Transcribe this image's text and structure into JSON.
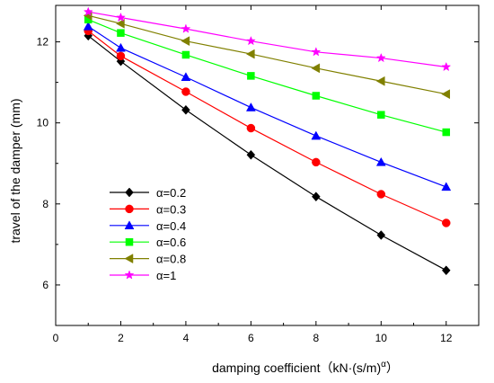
{
  "chart_data": {
    "type": "line",
    "xlabel": "damping coefficient（kN·(s/m)",
    "xlabel_exponent": "α",
    "xlabel_close": "）",
    "ylabel": "travel of the damper (mm)",
    "xlim": [
      0,
      13
    ],
    "ylim": [
      5,
      12.9
    ],
    "xticks": [
      0,
      2,
      4,
      6,
      8,
      10,
      12
    ],
    "yticks": [
      6,
      8,
      10,
      12
    ],
    "x": [
      1,
      2,
      4,
      6,
      8,
      10,
      12
    ],
    "legend_position": "lower-left",
    "series": [
      {
        "name": "α=0.2",
        "color": "#000000",
        "marker": "diamond",
        "values": [
          12.15,
          11.52,
          10.32,
          9.21,
          8.18,
          7.23,
          6.36
        ]
      },
      {
        "name": "α=0.3",
        "color": "#ff0000",
        "marker": "circle",
        "values": [
          12.27,
          11.65,
          10.77,
          9.87,
          9.03,
          8.24,
          7.53
        ]
      },
      {
        "name": "α=0.4",
        "color": "#0000ff",
        "marker": "triangle-up",
        "values": [
          12.38,
          11.85,
          11.13,
          10.38,
          9.68,
          9.03,
          8.42
        ]
      },
      {
        "name": "α=0.6",
        "color": "#00ff00",
        "marker": "square",
        "values": [
          12.55,
          12.22,
          11.68,
          11.16,
          10.67,
          10.2,
          9.77
        ]
      },
      {
        "name": "α=0.8",
        "color": "#808000",
        "marker": "triangle-left",
        "values": [
          12.65,
          12.45,
          12.02,
          11.7,
          11.35,
          11.03,
          10.71
        ]
      },
      {
        "name": "α=1",
        "color": "#ff00ff",
        "marker": "star",
        "values": [
          12.74,
          12.6,
          12.32,
          12.02,
          11.75,
          11.6,
          11.38
        ]
      }
    ]
  }
}
